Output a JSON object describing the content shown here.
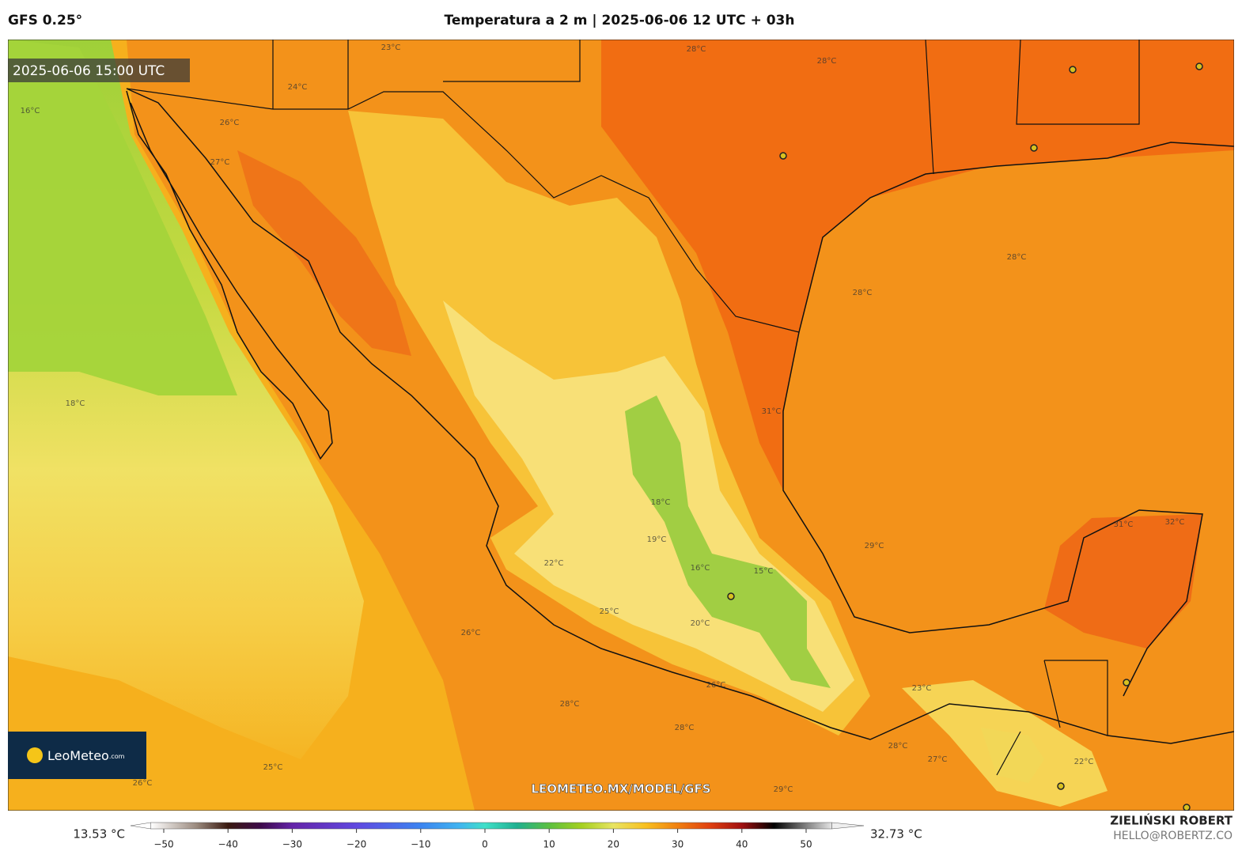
{
  "header": {
    "model": "GFS 0.25°",
    "title": "Temperatura a 2 m | 2025-06-06 12 UTC + 03h"
  },
  "map": {
    "timestamp": "2025-06-06 15:00 UTC",
    "watermark": "LEOMETEO.MX/MODEL/GFS",
    "logo": "LeoMeteo",
    "logo_suffix": ".com",
    "contour_labels": [
      "28°C",
      "28°C",
      "23°C",
      "24°C",
      "26°C",
      "27°C",
      "16°C",
      "18°C",
      "28°C",
      "28°C",
      "31°C",
      "29°C",
      "31°C",
      "32°C",
      "18°C",
      "19°C",
      "22°C",
      "16°C",
      "15°C",
      "20°C",
      "25°C",
      "26°C",
      "28°C",
      "28°C",
      "29°C",
      "26°C",
      "28°C",
      "25°C",
      "26°C",
      "22°C",
      "23°C",
      "27°C"
    ]
  },
  "colorbar": {
    "min_label": "13.53 °C",
    "max_label": "32.73 °C",
    "ticks": [
      {
        "value": -50,
        "label": "−50"
      },
      {
        "value": -40,
        "label": "−40"
      },
      {
        "value": -30,
        "label": "−30"
      },
      {
        "value": -20,
        "label": "−20"
      },
      {
        "value": -10,
        "label": "−10"
      },
      0,
      10,
      20,
      30,
      40,
      50
    ]
  },
  "footer": {
    "author": "ZIELIŃSKI ROBERT",
    "email": "HELLO@ROBERTZ.CO"
  }
}
